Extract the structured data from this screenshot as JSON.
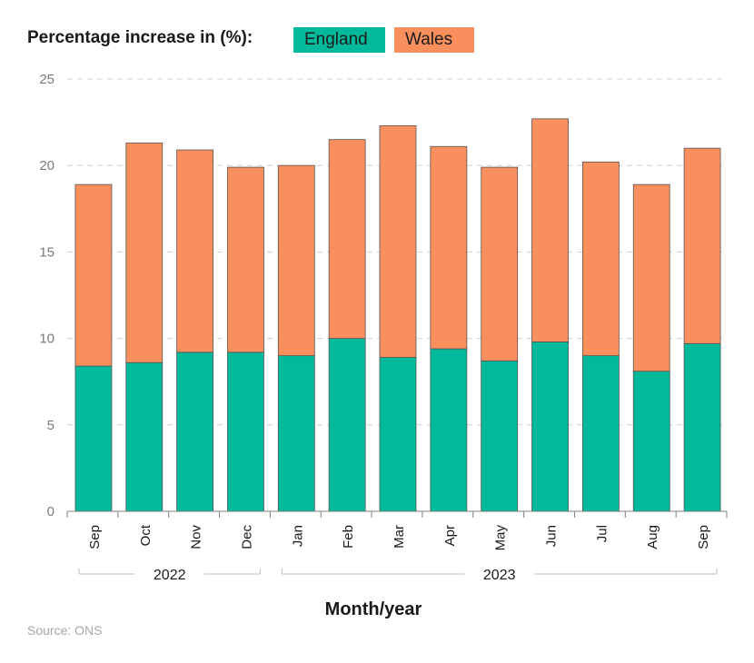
{
  "legend": {
    "title": "Percentage increase in (%):",
    "items": [
      {
        "label": "England",
        "color": "#00BA9B"
      },
      {
        "label": "Wales",
        "color": "#FA8F5E"
      }
    ]
  },
  "source": "Source: ONS",
  "chart_data": {
    "type": "bar",
    "stacked": true,
    "title": "Percentage increase in (%):",
    "xlabel": "Month/year",
    "ylabel": "",
    "ylim": [
      0,
      25
    ],
    "yticks": [
      0,
      5,
      10,
      15,
      20,
      25
    ],
    "grid": true,
    "categories": [
      "Sep",
      "Oct",
      "Nov",
      "Dec",
      "Jan",
      "Feb",
      "Mar",
      "Apr",
      "May",
      "Jun",
      "Jul",
      "Aug",
      "Sep"
    ],
    "year_groups": [
      {
        "label": "2022",
        "from": 0,
        "to": 3
      },
      {
        "label": "2023",
        "from": 4,
        "to": 12
      }
    ],
    "series": [
      {
        "name": "England",
        "color": "#00BA9B",
        "values": [
          8.4,
          8.6,
          9.2,
          9.2,
          9.0,
          10.0,
          8.9,
          9.4,
          8.7,
          9.8,
          9.0,
          8.1,
          9.7
        ]
      },
      {
        "name": "Wales",
        "color": "#FA8F5E",
        "values": [
          10.5,
          12.7,
          11.7,
          10.7,
          11.0,
          11.5,
          13.4,
          11.7,
          11.2,
          12.9,
          11.2,
          10.8,
          11.3
        ]
      }
    ]
  }
}
